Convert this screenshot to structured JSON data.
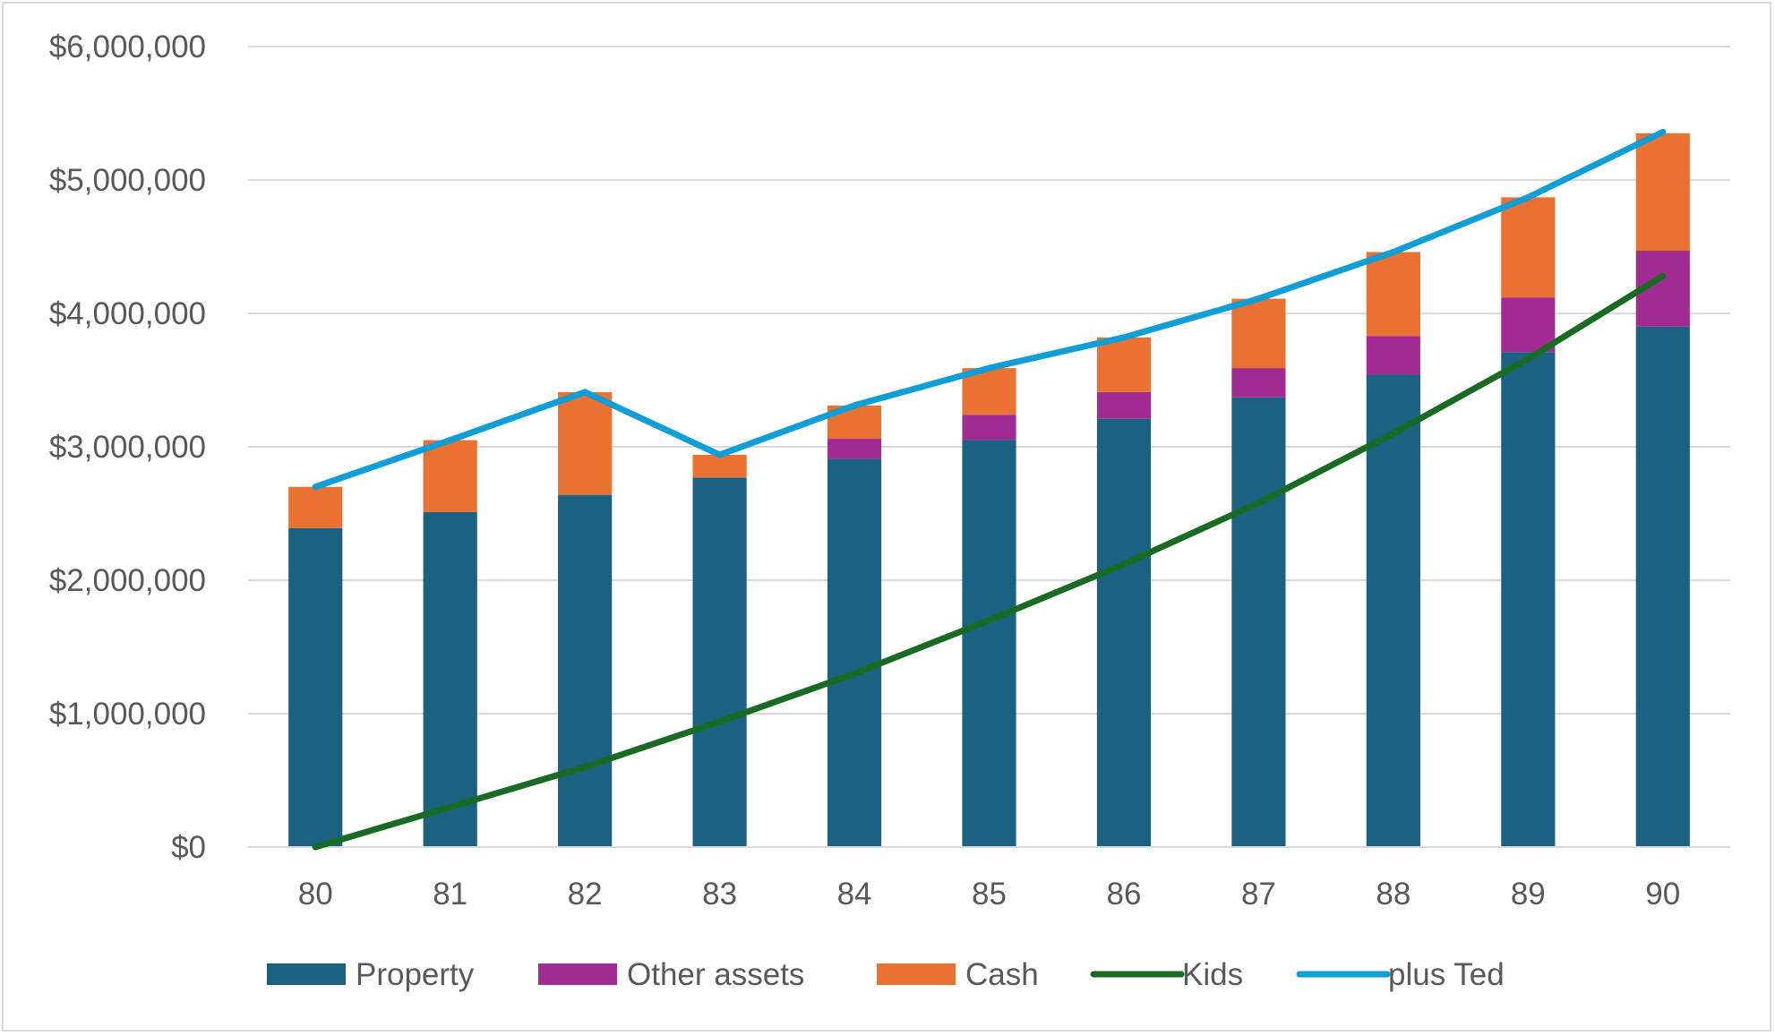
{
  "chart_data": {
    "type": "bar",
    "stacked": true,
    "categories": [
      "80",
      "81",
      "82",
      "83",
      "84",
      "85",
      "86",
      "87",
      "88",
      "89",
      "90"
    ],
    "series": [
      {
        "name": "Property",
        "kind": "bar",
        "color": "#1a6182",
        "values": [
          2390000,
          2510000,
          2640000,
          2770000,
          2910000,
          3050000,
          3210000,
          3370000,
          3540000,
          3710000,
          3900000
        ]
      },
      {
        "name": "Other assets",
        "kind": "bar",
        "color": "#a02b93",
        "values": [
          0,
          0,
          0,
          0,
          150000,
          190000,
          200000,
          220000,
          290000,
          410000,
          570000
        ]
      },
      {
        "name": "Cash",
        "kind": "bar",
        "color": "#e97132",
        "values": [
          310000,
          540000,
          770000,
          170000,
          250000,
          350000,
          410000,
          520000,
          630000,
          750000,
          880000
        ]
      },
      {
        "name": "Kids",
        "kind": "line",
        "color": "#196b24",
        "values": [
          0,
          300000,
          600000,
          940000,
          1300000,
          1700000,
          2120000,
          2580000,
          3100000,
          3660000,
          4280000
        ]
      },
      {
        "name": "plus Ted",
        "kind": "line",
        "color": "#0f9ed5",
        "values": [
          2700000,
          3050000,
          3410000,
          2940000,
          3310000,
          3590000,
          3820000,
          4110000,
          4460000,
          4870000,
          5360000
        ]
      }
    ],
    "y_tick_labels": [
      "$0",
      "$1,000,000",
      "$2,000,000",
      "$3,000,000",
      "$4,000,000",
      "$5,000,000",
      "$6,000,000"
    ],
    "y_ticks": [
      0,
      1000000,
      2000000,
      3000000,
      4000000,
      5000000,
      6000000
    ],
    "ylim": [
      0,
      6000000
    ],
    "title": "",
    "xlabel": "",
    "ylabel": "",
    "grid": "horizontal",
    "gridline_color": "#d9d9d9",
    "legend_position": "bottom"
  }
}
